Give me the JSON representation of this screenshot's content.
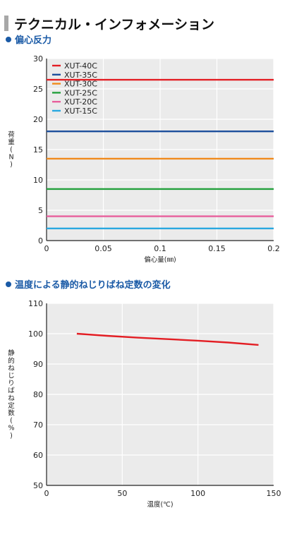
{
  "page_title": "テクニカル・インフォメーション",
  "sections": [
    {
      "heading": "偏心反力"
    },
    {
      "heading": "温度による静的ねじりばね定数の変化"
    }
  ],
  "chart_data": [
    {
      "type": "line",
      "ylabel": "荷重(N)",
      "xlabel": "偏心量(㎜)",
      "xlim": [
        0,
        0.2
      ],
      "ylim": [
        0,
        30
      ],
      "x_ticks": [
        0,
        0.05,
        0.1,
        0.15,
        0.2
      ],
      "x_tick_labels": [
        "0",
        "0.05",
        "0.1",
        "0.15",
        "0.2"
      ],
      "y_ticks": [
        0,
        5,
        10,
        15,
        20,
        25,
        30
      ],
      "y_tick_labels": [
        "0",
        "5",
        "10",
        "15",
        "20",
        "25",
        "30"
      ],
      "grid": true,
      "legend_position": "top-left",
      "series": [
        {
          "name": "XUT-40C",
          "color": "#e31e24",
          "x": [
            0,
            0.2
          ],
          "values": [
            26.5,
            26.5
          ]
        },
        {
          "name": "XUT-35C",
          "color": "#1d4f9c",
          "x": [
            0,
            0.2
          ],
          "values": [
            18,
            18
          ]
        },
        {
          "name": "XUT-30C",
          "color": "#f08a1c",
          "x": [
            0,
            0.2
          ],
          "values": [
            13.5,
            13.5
          ]
        },
        {
          "name": "XUT-25C",
          "color": "#23a03c",
          "x": [
            0,
            0.2
          ],
          "values": [
            8.5,
            8.5
          ]
        },
        {
          "name": "XUT-20C",
          "color": "#e8609c",
          "x": [
            0,
            0.2
          ],
          "values": [
            4,
            4
          ]
        },
        {
          "name": "XUT-15C",
          "color": "#2aa8e0",
          "x": [
            0,
            0.2
          ],
          "values": [
            2,
            2
          ]
        }
      ]
    },
    {
      "type": "line",
      "ylabel": "静的ねじりばね定数(%)",
      "xlabel": "温度(℃)",
      "xlim": [
        0,
        150
      ],
      "ylim": [
        50,
        110
      ],
      "x_ticks": [
        0,
        50,
        100,
        150
      ],
      "x_tick_labels": [
        "0",
        "50",
        "100",
        "150"
      ],
      "y_ticks": [
        50,
        60,
        70,
        80,
        90,
        100,
        110
      ],
      "y_tick_labels": [
        "50",
        "60",
        "70",
        "80",
        "90",
        "100",
        "110"
      ],
      "grid": true,
      "series": [
        {
          "color": "#e31e24",
          "x": [
            20,
            40,
            60,
            80,
            100,
            120,
            140
          ],
          "values": [
            100,
            99.3,
            98.7,
            98.2,
            97.7,
            97.1,
            96.3
          ]
        }
      ]
    }
  ]
}
